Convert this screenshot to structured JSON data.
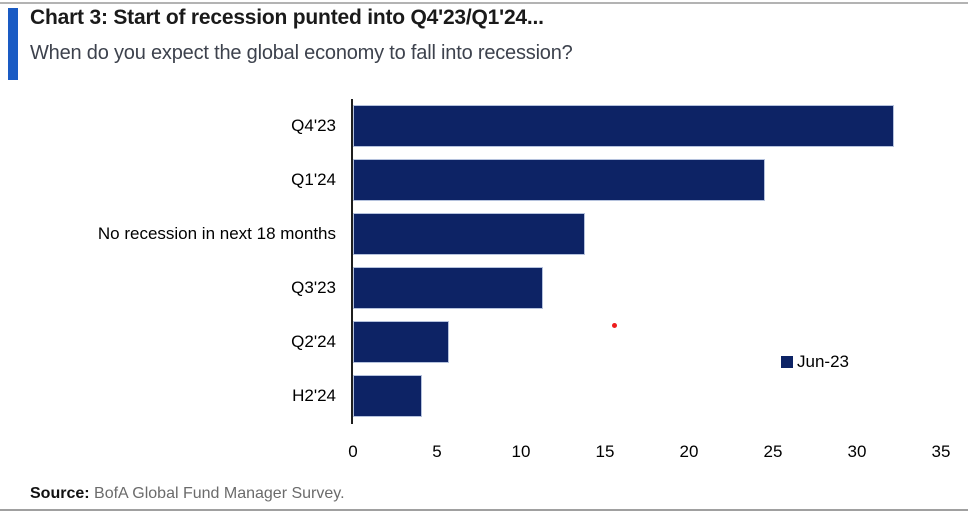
{
  "header": {
    "title": "Chart 3: Start of recession punted into Q4'23/Q1'24...",
    "subtitle": "When do you expect the global economy to fall into recession?",
    "accent_color": "#1a5bc4"
  },
  "chart_data": {
    "type": "bar",
    "orientation": "horizontal",
    "title": "When do you expect the global economy to fall into recession?",
    "categories": [
      "Q4'23",
      "Q1'24",
      "No recession in next 18 months",
      "Q3'23",
      "Q2'24",
      "H2'24"
    ],
    "series": [
      {
        "name": "Jun-23",
        "values": [
          32.2,
          24.5,
          13.8,
          11.3,
          5.7,
          4.1
        ]
      }
    ],
    "xlim": [
      0,
      35
    ],
    "xticks": [
      0,
      5,
      10,
      15,
      20,
      25,
      30,
      35
    ],
    "xlabel": "",
    "ylabel": "",
    "grid": false,
    "bar_color": "#0d2365",
    "legend": {
      "label": "Jun-23",
      "position": "right-middle",
      "swatch_color": "#0d2365"
    }
  },
  "annotations": {
    "red_dot": {
      "color": "#ee1c1c"
    }
  },
  "footer": {
    "source_label": "Source:",
    "source_text": " BofA Global Fund Manager Survey."
  }
}
